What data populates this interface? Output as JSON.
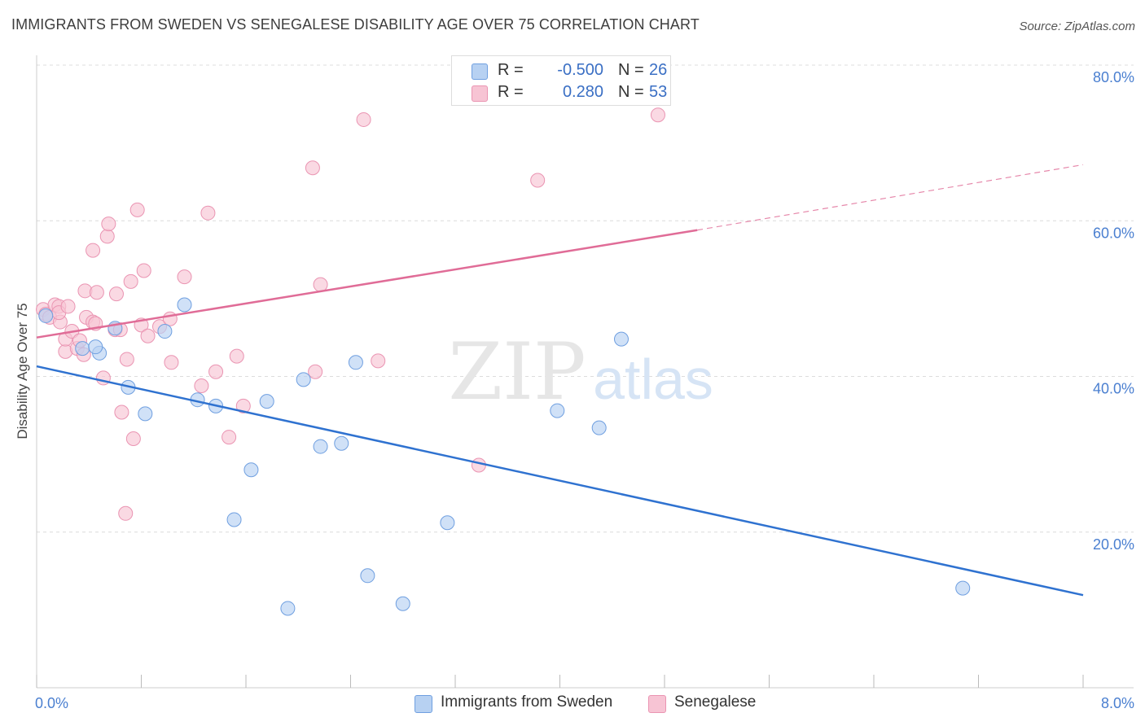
{
  "header": {
    "title": "IMMIGRANTS FROM SWEDEN VS SENEGALESE DISABILITY AGE OVER 75 CORRELATION CHART",
    "source": "Source: ZipAtlas.com"
  },
  "watermark": {
    "zip": "ZIP",
    "atlas": "atlas"
  },
  "legend_top": {
    "rows": [
      {
        "r_label": "R =",
        "r_value": "-0.500",
        "n_label": "N =",
        "n_value": "26"
      },
      {
        "r_label": "R =",
        "r_value": "0.280",
        "n_label": "N =",
        "n_value": "53"
      }
    ]
  },
  "legend_bottom": {
    "items": [
      {
        "label": "Immigrants from Sweden"
      },
      {
        "label": "Senegalese"
      }
    ]
  },
  "colors": {
    "sweden_fill": "#b7d1f2",
    "sweden_stroke": "#6f9fe0",
    "sweden_line": "#2f72d0",
    "senegalese_fill": "#f7c4d4",
    "senegalese_stroke": "#ea94b2",
    "senegalese_line": "#e06c97",
    "axis_label": "#4a7fd0",
    "grid": "#dcdcdc"
  },
  "chart_data": {
    "type": "scatter",
    "title": "IMMIGRANTS FROM SWEDEN VS SENEGALESE DISABILITY AGE OVER 75 CORRELATION CHART",
    "xlabel": "",
    "ylabel": "Disability Age Over 75",
    "xlim": [
      0,
      8
    ],
    "ylim": [
      0,
      80
    ],
    "x_ticks": [
      0,
      0.8,
      1.6,
      2.4,
      3.2,
      4.0,
      4.8,
      5.6,
      6.4,
      7.2,
      8.0
    ],
    "x_tick_labels_shown": {
      "0": "0.0%",
      "8": "8.0%"
    },
    "y_ticks": [
      20,
      40,
      60,
      80
    ],
    "y_tick_labels": [
      "20.0%",
      "40.0%",
      "60.0%",
      "80.0%"
    ],
    "grid": true,
    "legend": "top-center",
    "series": [
      {
        "name": "Immigrants from Sweden",
        "R": -0.5,
        "N": 26,
        "trend": {
          "x": [
            0,
            8
          ],
          "y": [
            41.3,
            11.9
          ],
          "dashed_from": null
        },
        "points": [
          [
            0.07,
            47.8
          ],
          [
            0.35,
            43.6
          ],
          [
            0.48,
            43.0
          ],
          [
            0.45,
            43.8
          ],
          [
            0.6,
            46.2
          ],
          [
            0.7,
            38.6
          ],
          [
            0.83,
            35.2
          ],
          [
            0.98,
            45.8
          ],
          [
            1.13,
            49.2
          ],
          [
            1.23,
            37.0
          ],
          [
            1.37,
            36.2
          ],
          [
            1.64,
            28.0
          ],
          [
            1.51,
            21.6
          ],
          [
            1.76,
            36.8
          ],
          [
            1.92,
            10.2
          ],
          [
            2.04,
            39.6
          ],
          [
            2.17,
            31.0
          ],
          [
            2.33,
            31.4
          ],
          [
            2.44,
            41.8
          ],
          [
            2.53,
            14.4
          ],
          [
            2.8,
            10.8
          ],
          [
            3.14,
            21.2
          ],
          [
            3.98,
            35.6
          ],
          [
            4.3,
            33.4
          ],
          [
            4.47,
            44.8
          ],
          [
            7.08,
            12.8
          ]
        ]
      },
      {
        "name": "Senegalese",
        "R": 0.28,
        "N": 53,
        "trend": {
          "x": [
            0,
            5.05,
            8
          ],
          "y": [
            45.0,
            58.8,
            67.2
          ],
          "dashed_from": 5.05
        },
        "points": [
          [
            0.05,
            48.6
          ],
          [
            0.07,
            48.0
          ],
          [
            0.1,
            47.6
          ],
          [
            0.14,
            49.2
          ],
          [
            0.17,
            49.0
          ],
          [
            0.18,
            47.0
          ],
          [
            0.17,
            48.2
          ],
          [
            0.22,
            43.2
          ],
          [
            0.22,
            44.8
          ],
          [
            0.24,
            49.0
          ],
          [
            0.27,
            45.8
          ],
          [
            0.31,
            43.6
          ],
          [
            0.33,
            44.6
          ],
          [
            0.38,
            47.6
          ],
          [
            0.37,
            51.0
          ],
          [
            0.43,
            47.0
          ],
          [
            0.45,
            46.8
          ],
          [
            0.46,
            50.8
          ],
          [
            0.43,
            56.2
          ],
          [
            0.51,
            39.8
          ],
          [
            0.54,
            58.0
          ],
          [
            0.55,
            59.6
          ],
          [
            0.6,
            46.0
          ],
          [
            0.61,
            50.6
          ],
          [
            0.64,
            46.0
          ],
          [
            0.65,
            35.4
          ],
          [
            0.68,
            22.4
          ],
          [
            0.69,
            42.2
          ],
          [
            0.72,
            52.2
          ],
          [
            0.74,
            32.0
          ],
          [
            0.77,
            61.4
          ],
          [
            0.8,
            46.6
          ],
          [
            0.82,
            53.6
          ],
          [
            0.85,
            45.2
          ],
          [
            0.94,
            46.4
          ],
          [
            1.02,
            47.4
          ],
          [
            1.03,
            41.8
          ],
          [
            1.13,
            52.8
          ],
          [
            1.26,
            38.8
          ],
          [
            1.31,
            61.0
          ],
          [
            1.37,
            40.6
          ],
          [
            1.47,
            32.2
          ],
          [
            1.53,
            42.6
          ],
          [
            1.58,
            36.2
          ],
          [
            2.11,
            66.8
          ],
          [
            2.13,
            40.6
          ],
          [
            2.17,
            51.8
          ],
          [
            2.5,
            73.0
          ],
          [
            2.61,
            42.0
          ],
          [
            3.38,
            28.6
          ],
          [
            3.83,
            65.2
          ],
          [
            4.75,
            73.6
          ],
          [
            0.36,
            42.8
          ]
        ]
      }
    ]
  }
}
